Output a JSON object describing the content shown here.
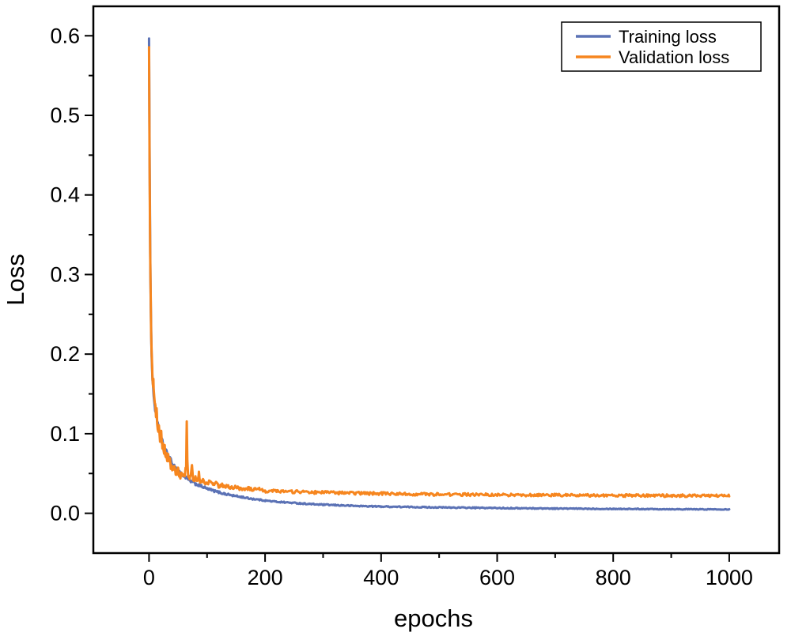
{
  "figure": {
    "background": "#ffffff",
    "axis_color": "#000000"
  },
  "chart_data": {
    "type": "line",
    "title": "",
    "xlabel": "epochs",
    "ylabel": "Loss",
    "xlim": [
      -96,
      1086
    ],
    "ylim": [
      -0.05,
      0.637
    ],
    "grid": false,
    "legend_position": "top-right",
    "x_ticks": [
      0,
      200,
      400,
      600,
      800,
      1000
    ],
    "x_tick_labels": [
      "0",
      "200",
      "400",
      "600",
      "800",
      "1000"
    ],
    "x_minor_step": 100,
    "y_ticks": [
      0,
      0.1,
      0.2,
      0.3,
      0.4,
      0.5,
      0.6
    ],
    "y_tick_labels": [
      "0.0",
      "0.1",
      "0.2",
      "0.3",
      "0.4",
      "0.5",
      "0.6"
    ],
    "y_minor_step": 0.05,
    "series": [
      {
        "name": "Training loss",
        "color": "#5B72B5",
        "final_value": 0.005,
        "keypoints": [
          [
            0,
            0.6
          ],
          [
            0.5,
            0.52
          ],
          [
            1,
            0.445
          ],
          [
            1.5,
            0.385
          ],
          [
            2,
            0.335
          ],
          [
            2.5,
            0.295
          ],
          [
            3,
            0.262
          ],
          [
            3.5,
            0.236
          ],
          [
            4,
            0.214
          ],
          [
            5,
            0.186
          ],
          [
            6,
            0.168
          ],
          [
            7,
            0.157
          ],
          [
            8,
            0.149
          ],
          [
            9,
            0.141
          ],
          [
            10,
            0.134
          ],
          [
            12,
            0.123
          ],
          [
            14,
            0.115
          ],
          [
            16,
            0.108
          ],
          [
            18,
            0.102
          ],
          [
            20,
            0.097
          ],
          [
            23,
            0.09
          ],
          [
            26,
            0.084
          ],
          [
            30,
            0.077
          ],
          [
            34,
            0.071
          ],
          [
            38,
            0.066
          ],
          [
            42,
            0.061
          ],
          [
            46,
            0.057
          ],
          [
            50,
            0.054
          ],
          [
            55,
            0.05
          ],
          [
            60,
            0.047
          ],
          [
            65,
            0.044
          ],
          [
            70,
            0.041
          ],
          [
            75,
            0.039
          ],
          [
            80,
            0.037
          ],
          [
            85,
            0.0355
          ],
          [
            90,
            0.034
          ],
          [
            95,
            0.0325
          ],
          [
            100,
            0.031
          ],
          [
            110,
            0.0285
          ],
          [
            120,
            0.0265
          ],
          [
            130,
            0.0245
          ],
          [
            140,
            0.023
          ],
          [
            150,
            0.0215
          ],
          [
            160,
            0.0205
          ],
          [
            170,
            0.019
          ],
          [
            180,
            0.018
          ],
          [
            190,
            0.017
          ],
          [
            200,
            0.016
          ],
          [
            220,
            0.0145
          ],
          [
            240,
            0.0135
          ],
          [
            260,
            0.0125
          ],
          [
            280,
            0.0115
          ],
          [
            300,
            0.0108
          ],
          [
            330,
            0.01
          ],
          [
            360,
            0.0092
          ],
          [
            400,
            0.0085
          ],
          [
            440,
            0.008
          ],
          [
            480,
            0.0076
          ],
          [
            520,
            0.0072
          ],
          [
            560,
            0.0069
          ],
          [
            600,
            0.0066
          ],
          [
            650,
            0.0063
          ],
          [
            700,
            0.006
          ],
          [
            750,
            0.0058
          ],
          [
            800,
            0.0056
          ],
          [
            850,
            0.0054
          ],
          [
            900,
            0.0052
          ],
          [
            950,
            0.005
          ],
          [
            1000,
            0.005
          ]
        ],
        "noise_amplitude": [
          [
            0,
            0.004
          ],
          [
            10,
            0.003
          ],
          [
            60,
            0.002
          ],
          [
            100,
            0.0015
          ],
          [
            200,
            0.0008
          ],
          [
            1000,
            0.0005
          ]
        ]
      },
      {
        "name": "Validation loss",
        "color": "#F6861F",
        "final_value": 0.022,
        "keypoints": [
          [
            0,
            0.58
          ],
          [
            0.5,
            0.5
          ],
          [
            1,
            0.43
          ],
          [
            1.5,
            0.375
          ],
          [
            2,
            0.33
          ],
          [
            2.5,
            0.29
          ],
          [
            3,
            0.26
          ],
          [
            3.5,
            0.235
          ],
          [
            4,
            0.215
          ],
          [
            5,
            0.19
          ],
          [
            6,
            0.172
          ],
          [
            7,
            0.16
          ],
          [
            7.5,
            0.17
          ],
          [
            8,
            0.155
          ],
          [
            9,
            0.148
          ],
          [
            10,
            0.14
          ],
          [
            11,
            0.131
          ],
          [
            12,
            0.124
          ],
          [
            13,
            0.13
          ],
          [
            14,
            0.115
          ],
          [
            15,
            0.109
          ],
          [
            16,
            0.104
          ],
          [
            17,
            0.11
          ],
          [
            18,
            0.098
          ],
          [
            19,
            0.094
          ],
          [
            20,
            0.091
          ],
          [
            21,
            0.1
          ],
          [
            22,
            0.088
          ],
          [
            23,
            0.084
          ],
          [
            24,
            0.088
          ],
          [
            25,
            0.08
          ],
          [
            26,
            0.077
          ],
          [
            27,
            0.083
          ],
          [
            28,
            0.074
          ],
          [
            29,
            0.071
          ],
          [
            30,
            0.078
          ],
          [
            31,
            0.069
          ],
          [
            32,
            0.066
          ],
          [
            33,
            0.072
          ],
          [
            34,
            0.064
          ],
          [
            35,
            0.062
          ],
          [
            36,
            0.068
          ],
          [
            37,
            0.06
          ],
          [
            38,
            0.058
          ],
          [
            39,
            0.064
          ],
          [
            40,
            0.057
          ],
          [
            42,
            0.054
          ],
          [
            44,
            0.059
          ],
          [
            46,
            0.052
          ],
          [
            48,
            0.05
          ],
          [
            50,
            0.055
          ],
          [
            52,
            0.048
          ],
          [
            54,
            0.047
          ],
          [
            56,
            0.052
          ],
          [
            58,
            0.046
          ],
          [
            60,
            0.045
          ],
          [
            62,
            0.049
          ],
          [
            64,
            0.06
          ],
          [
            65,
            0.115
          ],
          [
            66,
            0.068
          ],
          [
            67,
            0.05
          ],
          [
            68,
            0.046
          ],
          [
            70,
            0.044
          ],
          [
            72,
            0.048
          ],
          [
            74,
            0.058
          ],
          [
            76,
            0.044
          ],
          [
            78,
            0.042
          ],
          [
            80,
            0.046
          ],
          [
            82,
            0.041
          ],
          [
            84,
            0.04
          ],
          [
            86,
            0.052
          ],
          [
            88,
            0.04
          ],
          [
            90,
            0.039
          ],
          [
            93,
            0.042
          ],
          [
            96,
            0.038
          ],
          [
            100,
            0.037
          ],
          [
            105,
            0.04
          ],
          [
            110,
            0.036
          ],
          [
            115,
            0.038
          ],
          [
            120,
            0.034
          ],
          [
            125,
            0.036
          ],
          [
            130,
            0.033
          ],
          [
            135,
            0.035
          ],
          [
            140,
            0.032
          ],
          [
            150,
            0.033
          ],
          [
            160,
            0.0305
          ],
          [
            170,
            0.0315
          ],
          [
            180,
            0.0295
          ],
          [
            190,
            0.03
          ],
          [
            200,
            0.028
          ],
          [
            220,
            0.0285
          ],
          [
            240,
            0.027
          ],
          [
            260,
            0.0272
          ],
          [
            280,
            0.0262
          ],
          [
            300,
            0.0265
          ],
          [
            330,
            0.0255
          ],
          [
            360,
            0.0252
          ],
          [
            400,
            0.0248
          ],
          [
            450,
            0.0242
          ],
          [
            500,
            0.0238
          ],
          [
            550,
            0.0235
          ],
          [
            600,
            0.0232
          ],
          [
            650,
            0.023
          ],
          [
            700,
            0.0228
          ],
          [
            750,
            0.0226
          ],
          [
            800,
            0.0224
          ],
          [
            850,
            0.0222
          ],
          [
            900,
            0.0222
          ],
          [
            950,
            0.022
          ],
          [
            1000,
            0.022
          ]
        ],
        "noise_amplitude": [
          [
            0,
            0.006
          ],
          [
            10,
            0.0045
          ],
          [
            60,
            0.0035
          ],
          [
            100,
            0.0025
          ],
          [
            200,
            0.002
          ],
          [
            300,
            0.0018
          ],
          [
            1000,
            0.0016
          ]
        ]
      }
    ]
  },
  "legend": {
    "entries": [
      {
        "label": "Training loss",
        "color": "#5B72B5"
      },
      {
        "label": "Validation loss",
        "color": "#F6861F"
      }
    ]
  }
}
